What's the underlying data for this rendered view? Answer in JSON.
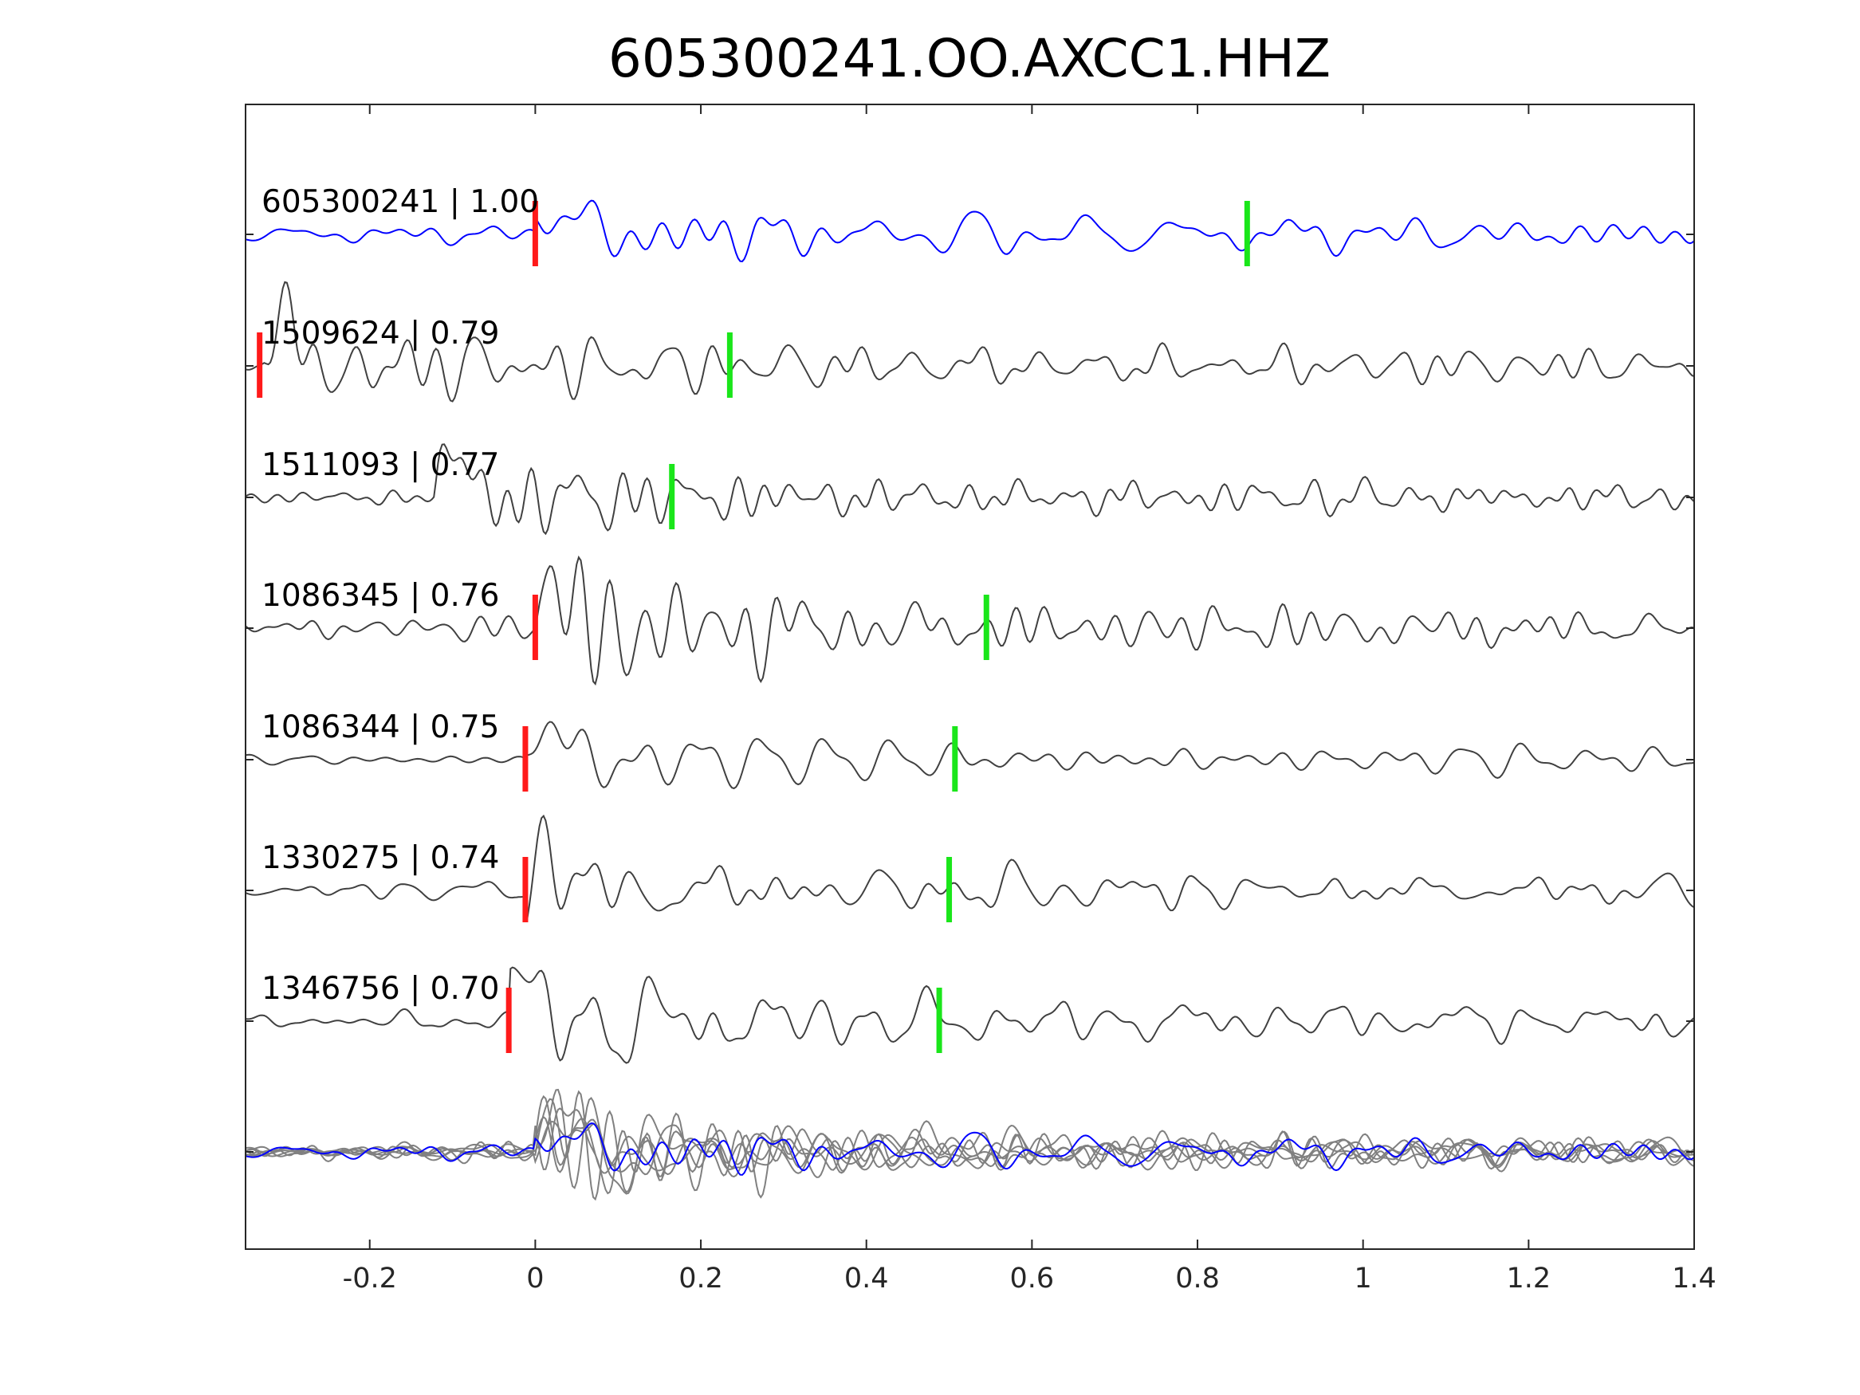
{
  "chart_data": {
    "type": "line",
    "title": "605300241.OO.AXCC1.HHZ",
    "xlabel": "",
    "ylabel": "",
    "xlim": [
      -0.35,
      1.4
    ],
    "x_ticks": [
      -0.2,
      0,
      0.2,
      0.4,
      0.6,
      0.8,
      1,
      1.2,
      1.4
    ],
    "x_tick_labels": [
      "-0.2",
      "0",
      "0.2",
      "0.4",
      "0.6",
      "0.8",
      "1",
      "1.2",
      "1.4"
    ],
    "grid": false,
    "colors": {
      "template_trace": "#0000ff",
      "detection_trace": "#404040",
      "overlay_trace": "#808080",
      "p_pick": "#ff1a1a",
      "s_pick": "#1ae61a",
      "axes": "#262626"
    },
    "traces": [
      {
        "label": "605300241 | 1.00",
        "role": "template",
        "p_pick": 0.0,
        "s_pick": 0.86,
        "onset": 0.0,
        "seed": 11
      },
      {
        "label": "1509624 | 0.79",
        "role": "detection",
        "p_pick": -0.333,
        "s_pick": 0.235,
        "onset": -0.33,
        "seed": 23
      },
      {
        "label": "1511093 | 0.77",
        "role": "detection",
        "p_pick": null,
        "s_pick": 0.165,
        "onset": -0.12,
        "seed": 37
      },
      {
        "label": "1086345 | 0.76",
        "role": "detection",
        "p_pick": 0.0,
        "s_pick": 0.545,
        "onset": 0.0,
        "seed": 41
      },
      {
        "label": "1086344 | 0.75",
        "role": "detection",
        "p_pick": -0.012,
        "s_pick": 0.507,
        "onset": -0.01,
        "seed": 53
      },
      {
        "label": "1330275 | 0.74",
        "role": "detection",
        "p_pick": -0.012,
        "s_pick": 0.5,
        "onset": -0.01,
        "seed": 67
      },
      {
        "label": "1346756 | 0.70",
        "role": "detection",
        "p_pick": -0.032,
        "s_pick": 0.488,
        "onset": -0.03,
        "seed": 79
      }
    ],
    "overlay": {
      "description_visible": false
    }
  }
}
